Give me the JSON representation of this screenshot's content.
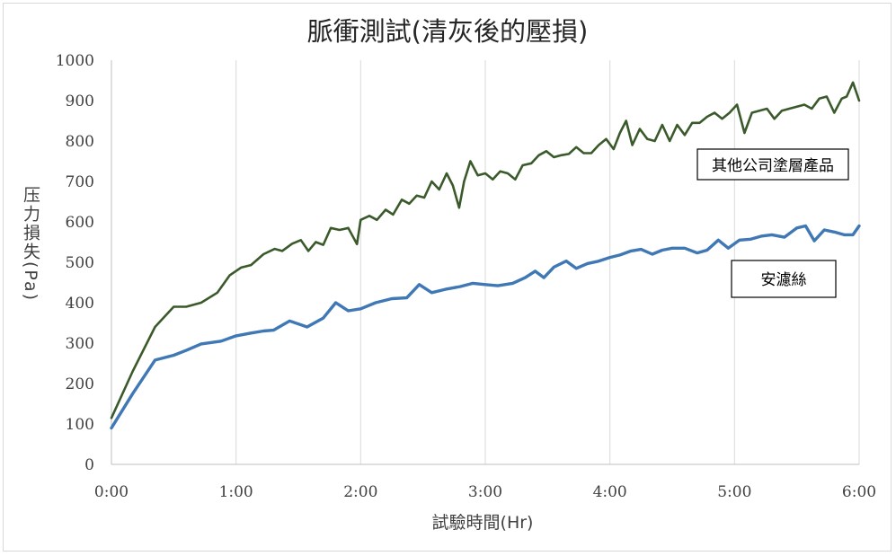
{
  "chart_data": {
    "type": "line",
    "title": "脈衝測試(清灰後的壓損)",
    "xlabel": "試驗時間(Hr)",
    "ylabel": "压力損失(Pa)",
    "x_ticks": [
      "0:00",
      "1:00",
      "2:00",
      "3:00",
      "4:00",
      "5:00",
      "6:00"
    ],
    "y_ticks": [
      0,
      100,
      200,
      300,
      400,
      500,
      600,
      700,
      800,
      900,
      1000
    ],
    "xlim_hours": [
      0,
      6
    ],
    "ylim": [
      0,
      1000
    ],
    "grid": "vertical",
    "legend": "inline labels",
    "colors": {
      "green_series": "#3a5a2b",
      "blue_series": "#3f78b5"
    },
    "series": [
      {
        "name": "其他公司塗層產品",
        "x_hours": [
          0,
          0.17,
          0.35,
          0.5,
          0.6,
          0.72,
          0.85,
          0.95,
          1.04,
          1.12,
          1.22,
          1.31,
          1.37,
          1.45,
          1.52,
          1.58,
          1.64,
          1.7,
          1.76,
          1.83,
          1.9,
          1.97,
          2.0,
          2.07,
          2.13,
          2.2,
          2.26,
          2.33,
          2.39,
          2.45,
          2.51,
          2.57,
          2.63,
          2.69,
          2.74,
          2.79,
          2.83,
          2.88,
          2.94,
          3.0,
          3.06,
          3.12,
          3.18,
          3.24,
          3.3,
          3.37,
          3.43,
          3.49,
          3.55,
          3.61,
          3.67,
          3.73,
          3.79,
          3.85,
          3.91,
          3.97,
          4.03,
          4.08,
          4.13,
          4.18,
          4.24,
          4.3,
          4.36,
          4.42,
          4.48,
          4.54,
          4.6,
          4.66,
          4.72,
          4.78,
          4.84,
          4.9,
          4.96,
          5.02,
          5.08,
          5.14,
          5.2,
          5.26,
          5.32,
          5.38,
          5.44,
          5.5,
          5.56,
          5.62,
          5.68,
          5.74,
          5.8,
          5.86,
          5.9,
          5.95,
          6.0
        ],
        "values": [
          115,
          230,
          340,
          390,
          390,
          400,
          425,
          468,
          487,
          493,
          520,
          533,
          528,
          546,
          555,
          528,
          550,
          543,
          585,
          580,
          585,
          545,
          605,
          615,
          605,
          630,
          618,
          655,
          645,
          665,
          660,
          700,
          680,
          720,
          690,
          635,
          700,
          750,
          715,
          720,
          705,
          725,
          720,
          705,
          740,
          745,
          765,
          775,
          760,
          765,
          768,
          785,
          770,
          770,
          790,
          805,
          780,
          820,
          850,
          790,
          830,
          805,
          800,
          840,
          800,
          840,
          815,
          845,
          845,
          860,
          870,
          855,
          870,
          890,
          820,
          870,
          875,
          880,
          855,
          875,
          880,
          885,
          890,
          880,
          905,
          910,
          870,
          905,
          910,
          945,
          900
        ]
      },
      {
        "name": "安濾絲",
        "x_hours": [
          0,
          0.17,
          0.35,
          0.5,
          0.6,
          0.72,
          0.88,
          1.0,
          1.12,
          1.22,
          1.3,
          1.43,
          1.57,
          1.7,
          1.8,
          1.9,
          2.0,
          2.12,
          2.25,
          2.37,
          2.47,
          2.57,
          2.68,
          2.8,
          2.9,
          3.0,
          3.1,
          3.22,
          3.32,
          3.4,
          3.47,
          3.55,
          3.65,
          3.73,
          3.82,
          3.9,
          4.0,
          4.08,
          4.17,
          4.25,
          4.34,
          4.42,
          4.5,
          4.6,
          4.7,
          4.78,
          4.87,
          4.95,
          5.04,
          5.13,
          5.22,
          5.3,
          5.4,
          5.5,
          5.57,
          5.64,
          5.72,
          5.8,
          5.88,
          5.95,
          6.0
        ],
        "values": [
          90,
          175,
          258,
          270,
          282,
          298,
          305,
          318,
          325,
          330,
          332,
          355,
          340,
          362,
          400,
          380,
          385,
          400,
          410,
          412,
          445,
          425,
          433,
          440,
          448,
          445,
          442,
          448,
          462,
          478,
          462,
          488,
          503,
          485,
          497,
          502,
          512,
          518,
          528,
          532,
          520,
          530,
          535,
          535,
          523,
          530,
          555,
          535,
          555,
          557,
          565,
          568,
          562,
          585,
          590,
          553,
          580,
          575,
          568,
          568,
          590
        ]
      }
    ]
  }
}
